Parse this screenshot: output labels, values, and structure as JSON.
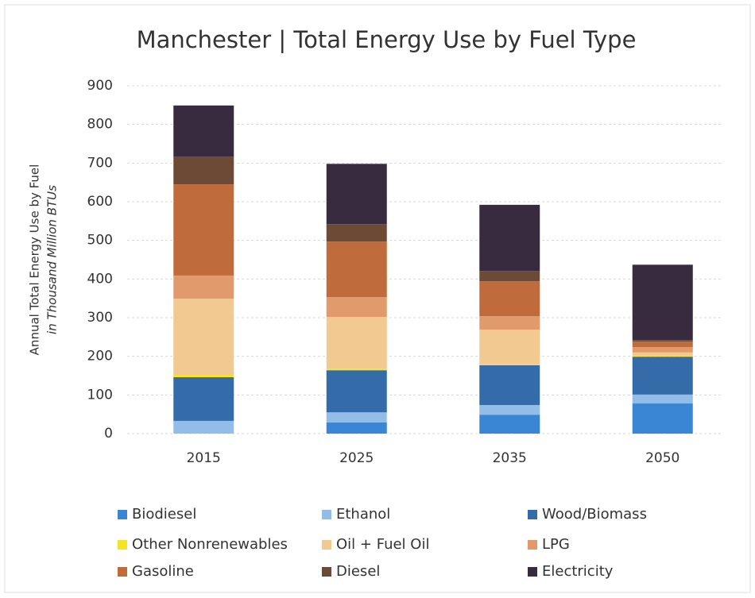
{
  "chart_data": {
    "type": "stacked_bar",
    "title": "Manchester | Total Energy Use by Fuel Type",
    "y_label": "Annual Total Energy Use by Fuel",
    "y_label_sub": "in Thousand Million BTUs",
    "categories": [
      "2015",
      "2025",
      "2035",
      "2050"
    ],
    "series": [
      {
        "name": "Biodiesel",
        "color": "#3a86d4",
        "values": [
          0,
          29,
          49,
          78
        ]
      },
      {
        "name": "Ethanol",
        "color": "#92bde9",
        "values": [
          33,
          26,
          25,
          23
        ]
      },
      {
        "name": "Wood/Biomass",
        "color": "#336ca8",
        "values": [
          113,
          109,
          103,
          98
        ]
      },
      {
        "name": "Other Nonrenewables",
        "color": "#f3e526",
        "values": [
          6,
          4,
          2,
          2
        ]
      },
      {
        "name": "Oil + Fuel Oil",
        "color": "#f1c991",
        "values": [
          197,
          134,
          90,
          9
        ]
      },
      {
        "name": "LPG",
        "color": "#e19a6c",
        "values": [
          60,
          51,
          35,
          14
        ]
      },
      {
        "name": "Gasoline",
        "color": "#bf6b3b",
        "values": [
          236,
          144,
          90,
          14
        ]
      },
      {
        "name": "Diesel",
        "color": "#6c4a35",
        "values": [
          72,
          45,
          27,
          4
        ]
      },
      {
        "name": "Electricity",
        "color": "#382a3f",
        "values": [
          132,
          156,
          171,
          195
        ]
      }
    ],
    "ylim": [
      0,
      900
    ],
    "yticks": [
      0,
      100,
      200,
      300,
      400,
      500,
      600,
      700,
      800,
      900
    ],
    "grid": true
  }
}
